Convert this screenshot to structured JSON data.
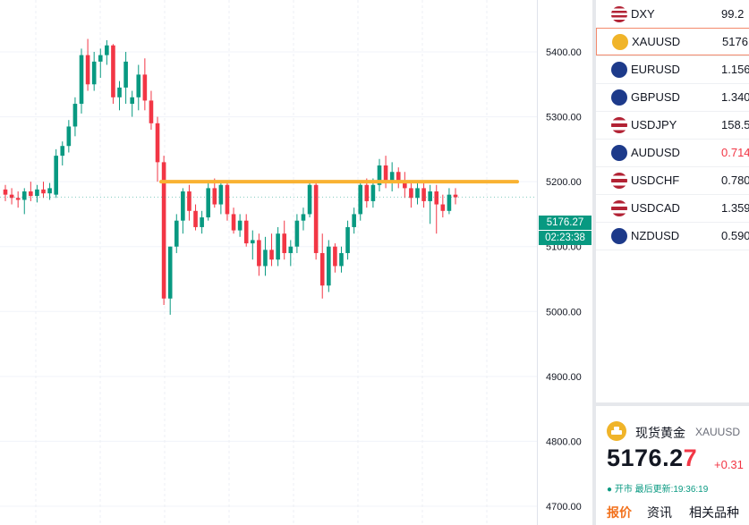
{
  "chart_data": {
    "type": "candlestick",
    "y_ticks": [
      "5400.00",
      "5300.00",
      "5200.00",
      "5100.00",
      "5000.00",
      "4900.00",
      "4800.00",
      "4700.00"
    ],
    "ylim": [
      4680,
      5480
    ],
    "current_price": "5176.27",
    "countdown": "02:23:38",
    "horizontal_line": {
      "value": 5200,
      "color": "#f9b233"
    },
    "up_color": "#089981",
    "down_color": "#f23645",
    "candles": [
      [
        5188,
        5195,
        5170,
        5180
      ],
      [
        5180,
        5190,
        5165,
        5175
      ],
      [
        5175,
        5185,
        5160,
        5172
      ],
      [
        5172,
        5190,
        5150,
        5185
      ],
      [
        5185,
        5200,
        5170,
        5178
      ],
      [
        5178,
        5195,
        5168,
        5188
      ],
      [
        5188,
        5200,
        5175,
        5182
      ],
      [
        5182,
        5198,
        5172,
        5190
      ],
      [
        5180,
        5250,
        5175,
        5240
      ],
      [
        5240,
        5262,
        5225,
        5255
      ],
      [
        5255,
        5295,
        5245,
        5285
      ],
      [
        5285,
        5330,
        5270,
        5320
      ],
      [
        5320,
        5405,
        5305,
        5395
      ],
      [
        5395,
        5420,
        5340,
        5350
      ],
      [
        5350,
        5400,
        5340,
        5385
      ],
      [
        5385,
        5405,
        5360,
        5395
      ],
      [
        5395,
        5418,
        5380,
        5410
      ],
      [
        5410,
        5412,
        5320,
        5330
      ],
      [
        5330,
        5355,
        5310,
        5345
      ],
      [
        5345,
        5400,
        5320,
        5385
      ],
      [
        5320,
        5340,
        5300,
        5330
      ],
      [
        5330,
        5380,
        5310,
        5365
      ],
      [
        5365,
        5390,
        5310,
        5325
      ],
      [
        5325,
        5340,
        5280,
        5290
      ],
      [
        5290,
        5300,
        5200,
        5230
      ],
      [
        5230,
        5240,
        5010,
        5020
      ],
      [
        5020,
        5100,
        4995,
        5100
      ],
      [
        5100,
        5150,
        5090,
        5140
      ],
      [
        5140,
        5190,
        5120,
        5185
      ],
      [
        5185,
        5195,
        5140,
        5155
      ],
      [
        5155,
        5165,
        5125,
        5130
      ],
      [
        5130,
        5155,
        5120,
        5145
      ],
      [
        5145,
        5200,
        5140,
        5190
      ],
      [
        5190,
        5205,
        5160,
        5165
      ],
      [
        5165,
        5200,
        5150,
        5195
      ],
      [
        5195,
        5200,
        5140,
        5150
      ],
      [
        5150,
        5160,
        5120,
        5125
      ],
      [
        5125,
        5150,
        5115,
        5140
      ],
      [
        5140,
        5150,
        5100,
        5105
      ],
      [
        5105,
        5125,
        5080,
        5110
      ],
      [
        5110,
        5120,
        5055,
        5070
      ],
      [
        5070,
        5115,
        5055,
        5095
      ],
      [
        5095,
        5120,
        5070,
        5080
      ],
      [
        5080,
        5130,
        5070,
        5120
      ],
      [
        5120,
        5140,
        5080,
        5090
      ],
      [
        5090,
        5110,
        5070,
        5100
      ],
      [
        5100,
        5150,
        5090,
        5140
      ],
      [
        5140,
        5160,
        5125,
        5150
      ],
      [
        5150,
        5200,
        5145,
        5195
      ],
      [
        5195,
        5200,
        5080,
        5090
      ],
      [
        5090,
        5120,
        5020,
        5040
      ],
      [
        5040,
        5110,
        5030,
        5100
      ],
      [
        5100,
        5105,
        5060,
        5070
      ],
      [
        5070,
        5100,
        5060,
        5090
      ],
      [
        5090,
        5140,
        5080,
        5130
      ],
      [
        5130,
        5160,
        5120,
        5150
      ],
      [
        5150,
        5200,
        5140,
        5195
      ],
      [
        5195,
        5205,
        5160,
        5170
      ],
      [
        5170,
        5205,
        5160,
        5195
      ],
      [
        5195,
        5235,
        5185,
        5225
      ],
      [
        5225,
        5240,
        5190,
        5200
      ],
      [
        5200,
        5230,
        5185,
        5215
      ],
      [
        5215,
        5222,
        5190,
        5200
      ],
      [
        5200,
        5215,
        5175,
        5190
      ],
      [
        5190,
        5200,
        5160,
        5175
      ],
      [
        5175,
        5200,
        5165,
        5190
      ],
      [
        5190,
        5202,
        5160,
        5170
      ],
      [
        5170,
        5195,
        5135,
        5185
      ],
      [
        5185,
        5195,
        5120,
        5165
      ],
      [
        5165,
        5180,
        5145,
        5155
      ],
      [
        5155,
        5190,
        5150,
        5180
      ],
      [
        5180,
        5190,
        5165,
        5176
      ]
    ]
  },
  "chart": {
    "price_badge": "5176.27",
    "timer_badge": "02:23:38"
  },
  "watchlist": {
    "items": [
      {
        "symbol": "DXY",
        "price": "99.2",
        "direction": "neutral",
        "flag": "flag-us-icon"
      },
      {
        "symbol": "XAUUSD",
        "price": "5176",
        "direction": "neutral",
        "flag": "gold-icon",
        "selected": true
      },
      {
        "symbol": "EURUSD",
        "price": "1.156",
        "direction": "neutral",
        "flag": "flag-eu-us-icon"
      },
      {
        "symbol": "GBPUSD",
        "price": "1.340",
        "direction": "neutral",
        "flag": "flag-gb-us-icon"
      },
      {
        "symbol": "USDJPY",
        "price": "158.5",
        "direction": "neutral",
        "flag": "flag-us-jp-icon"
      },
      {
        "symbol": "AUDUSD",
        "price": "0.714",
        "direction": "down",
        "flag": "flag-au-us-icon"
      },
      {
        "symbol": "USDCHF",
        "price": "0.780",
        "direction": "neutral",
        "flag": "flag-us-ch-icon"
      },
      {
        "symbol": "USDCAD",
        "price": "1.359",
        "direction": "neutral",
        "flag": "flag-us-ca-icon"
      },
      {
        "symbol": "NZDUSD",
        "price": "0.590",
        "direction": "neutral",
        "flag": "flag-nz-us-icon"
      }
    ]
  },
  "detail": {
    "name": "现货黄金",
    "symbol": "XAUUSD",
    "price_main": "5176.2",
    "price_last": "7",
    "change": "+0.31",
    "status": "● 开市  最后更新:19:36:19",
    "tabs": [
      "报价",
      "资讯",
      "相关品种"
    ]
  },
  "colors": {
    "accent": "#f2711c",
    "up": "#089981",
    "down": "#f23645",
    "selected_border": "#f3896b"
  }
}
